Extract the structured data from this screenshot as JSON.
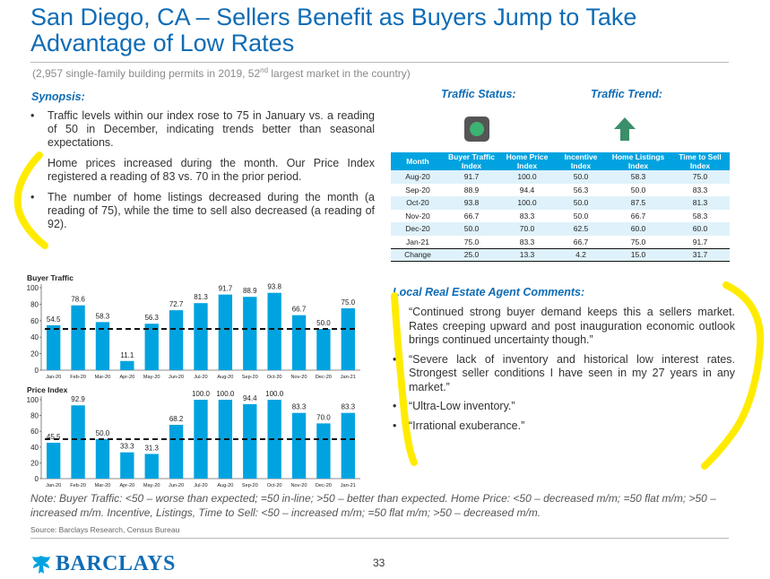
{
  "title": "San Diego, CA – Sellers Benefit as Buyers Jump to Take Advantage of Low Rates",
  "subtitle": {
    "before_sup": "(2,957 single-family building permits in 2019, 52",
    "sup": "nd",
    "after_sup": " largest market in the country)"
  },
  "synopsis": {
    "heading": "Synopsis:",
    "bullets": [
      "Traffic levels within our index rose to 75 in January vs. a reading of 50 in December, indicating trends better than seasonal expectations.",
      "Home prices increased during the month. Our Price Index registered a reading of 83 vs. 70 in the prior period.",
      "The number of home listings decreased during the month (a reading of 75), while the time to sell also decreased (a reading of 92)."
    ]
  },
  "traffic_status": {
    "label": "Traffic Status:",
    "indicator": "green-light-icon",
    "color": "#3cb371"
  },
  "traffic_trend": {
    "label": "Traffic Trend:",
    "indicator": "arrow-up-icon",
    "color": "#3a8f6a"
  },
  "table": {
    "headers": [
      [
        "",
        "Month"
      ],
      [
        "Buyer Traffic",
        "Index"
      ],
      [
        "Home Price",
        "Index"
      ],
      [
        "Incentive",
        "Index"
      ],
      [
        "Home Listings",
        "Index"
      ],
      [
        "Time to Sell",
        "Index"
      ]
    ],
    "rows": [
      [
        "Aug-20",
        "91.7",
        "100.0",
        "50.0",
        "58.3",
        "75.0"
      ],
      [
        "Sep-20",
        "88.9",
        "94.4",
        "56.3",
        "50.0",
        "83.3"
      ],
      [
        "Oct-20",
        "93.8",
        "100.0",
        "50.0",
        "87.5",
        "81.3"
      ],
      [
        "Nov-20",
        "66.7",
        "83.3",
        "50.0",
        "66.7",
        "58.3"
      ],
      [
        "Dec-20",
        "50.0",
        "70.0",
        "62.5",
        "60.0",
        "60.0"
      ],
      [
        "Jan-21",
        "75.0",
        "83.3",
        "66.7",
        "75.0",
        "91.7"
      ]
    ],
    "change_row": [
      "Change",
      "25.0",
      "13.3",
      "4.2",
      "15.0",
      "31.7"
    ]
  },
  "comments": {
    "heading": "Local Real Estate Agent Comments:",
    "bullets": [
      "“Continued strong buyer demand keeps this a sellers market. Rates creeping upward and post inauguration economic outlook brings continued uncertainty though.”",
      "“Severe lack of inventory and historical low interest rates. Strongest seller conditions I have seen in my 27 years in any market.”",
      "“Ultra-Low inventory.”",
      "“Irrational exuberance.”"
    ]
  },
  "chart_data": [
    {
      "type": "bar",
      "title": "Buyer Traffic",
      "categories": [
        "Jan-20",
        "Feb-20",
        "Mar-20",
        "Apr-20",
        "May-20",
        "Jun-20",
        "Jul-20",
        "Aug-20",
        "Sep-20",
        "Oct-20",
        "Nov-20",
        "Dec-20",
        "Jan-21"
      ],
      "values": [
        54.5,
        78.6,
        58.3,
        11.1,
        56.3,
        72.7,
        81.3,
        91.7,
        88.9,
        93.8,
        66.7,
        50.0,
        75.0
      ],
      "labels": [
        "54.5",
        "78.6",
        "58.3",
        "11.1",
        "56.3",
        "72.7",
        "81.3",
        "91.7",
        "88.9",
        "93.8",
        "66.7",
        "50.0",
        "75.0"
      ],
      "ylim": [
        0,
        100
      ],
      "yticks": [
        "0",
        "20",
        "40",
        "60",
        "80",
        "100"
      ],
      "reference_line": 50,
      "bar_color": "#00a3e0"
    },
    {
      "type": "bar",
      "title": "Price Index",
      "categories": [
        "Jan-20",
        "Feb-20",
        "Mar-20",
        "Apr-20",
        "May-20",
        "Jun-20",
        "Jul-20",
        "Aug-20",
        "Sep-20",
        "Oct-20",
        "Nov-20",
        "Dec-20",
        "Jan-21"
      ],
      "values": [
        45.5,
        92.9,
        50.0,
        33.3,
        31.3,
        68.2,
        100.0,
        100.0,
        94.4,
        100.0,
        83.3,
        70.0,
        83.3
      ],
      "labels": [
        "45.5",
        "92.9",
        "50.0",
        "33.3",
        "31.3",
        "68.2",
        "100.0",
        "100.0",
        "94.4",
        "100.0",
        "83.3",
        "70.0",
        "83.3"
      ],
      "ylim": [
        0,
        100
      ],
      "yticks": [
        "0",
        "20",
        "40",
        "60",
        "80",
        "100"
      ],
      "reference_line": 50,
      "bar_color": "#00a3e0"
    }
  ],
  "note": "Note: Buyer Traffic: <50 – worse than expected; =50 in-line; >50 – better than expected. Home Price: <50 – decreased m/m; =50 flat m/m; >50 – increased m/m. Incentive, Listings, Time to Sell: <50 – increased m/m; =50 flat m/m; >50 – decreased m/m.",
  "source": "Source: Barclays Research, Census Bureau",
  "logo": {
    "icon": "eagle-icon",
    "text": "BARCLAYS"
  },
  "page_number": "33",
  "colors": {
    "brand": "#0f6cb5",
    "bar": "#00a3e0",
    "highlight": "#ffeb00"
  }
}
